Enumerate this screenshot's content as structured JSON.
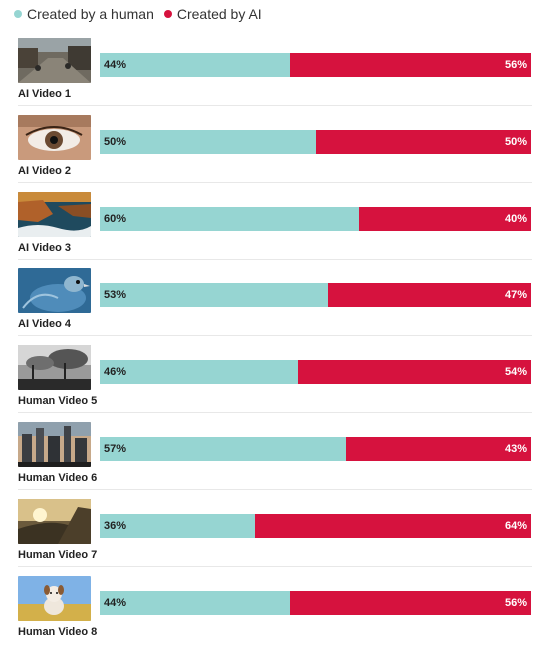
{
  "legend": {
    "human_label": "Created by a human",
    "ai_label": "Created by AI"
  },
  "colors": {
    "human": "#96d5d2",
    "ai": "#d6123e"
  },
  "chart_data": {
    "type": "bar",
    "orientation": "horizontal-stacked-100",
    "categories": [
      "AI Video 1",
      "AI Video 2",
      "AI Video 3",
      "AI Video 4",
      "Human Video 5",
      "Human Video 6",
      "Human Video 7",
      "Human Video 8"
    ],
    "series": [
      {
        "name": "Created by a human",
        "values": [
          44,
          50,
          60,
          53,
          46,
          57,
          36,
          44
        ]
      },
      {
        "name": "Created by AI",
        "values": [
          56,
          50,
          40,
          47,
          54,
          43,
          64,
          56
        ]
      }
    ],
    "value_labels_human": [
      "44%",
      "50%",
      "60%",
      "53%",
      "46%",
      "57%",
      "36%",
      "44%"
    ],
    "value_labels_ai": [
      "56%",
      "50%",
      "40%",
      "47%",
      "54%",
      "43%",
      "64%",
      "56%"
    ],
    "xlim": [
      0,
      100
    ],
    "legend_position": "top-left",
    "grid": false
  },
  "thumbnails": [
    "street-scene",
    "eye-closeup",
    "coastal-cliffs",
    "peacock-bird",
    "smoky-landscape",
    "city-skyline",
    "sunset-hill",
    "dog-in-field"
  ]
}
